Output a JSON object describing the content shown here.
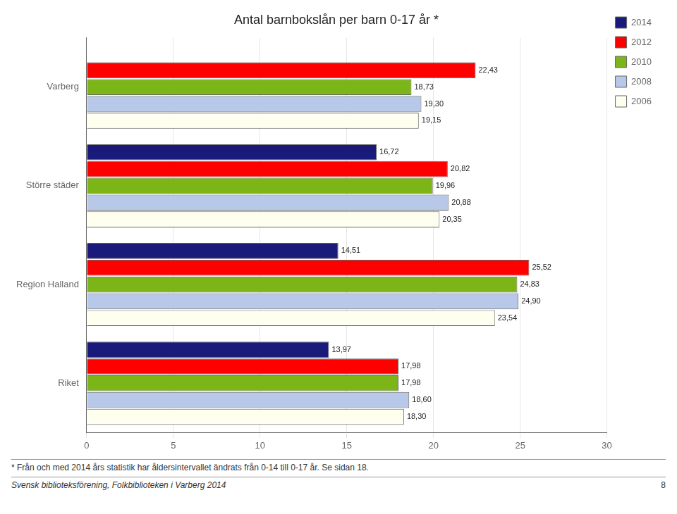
{
  "chart_data": {
    "type": "bar",
    "orientation": "horizontal",
    "title": "Antal barnbokslån per barn 0-17 år *",
    "categories": [
      "Varberg",
      "Större städer",
      "Region Halland",
      "Riket"
    ],
    "series": [
      {
        "name": "2014",
        "color": "#1a1a7a",
        "values": [
          null,
          16.72,
          14.51,
          13.97
        ],
        "value_labels": [
          null,
          "16,72",
          "14,51",
          "13,97"
        ]
      },
      {
        "name": "2012",
        "color": "#FF0000",
        "values": [
          22.43,
          20.82,
          25.52,
          17.98
        ],
        "value_labels": [
          "22,43",
          "20,82",
          "25,52",
          "17,98"
        ]
      },
      {
        "name": "2010",
        "color": "#7CB518",
        "values": [
          18.73,
          19.96,
          24.83,
          17.98
        ],
        "value_labels": [
          "18,73",
          "19,96",
          "24,83",
          "17,98"
        ]
      },
      {
        "name": "2008",
        "color": "#B8C8E8",
        "values": [
          19.3,
          20.88,
          24.9,
          18.6
        ],
        "value_labels": [
          "19,30",
          "20,88",
          "24,90",
          "18,60"
        ]
      },
      {
        "name": "2006",
        "color": "#FFFFF0",
        "values": [
          19.15,
          20.35,
          23.54,
          18.3
        ],
        "value_labels": [
          "19,15",
          "20,35",
          "23,54",
          "18,30"
        ]
      }
    ],
    "xlim": [
      0,
      30
    ],
    "xticks": [
      0,
      5,
      10,
      15,
      20,
      25,
      30
    ],
    "grid": true,
    "legend": "right",
    "data_labels": true,
    "annotations": [
      "* Från och med 2014 års statistik har åldersintervallet ändrats från 0-14 till 0-17 år. Se sidan 18.",
      "Svensk biblioteksförening, Folkbiblioteken i Varberg 2014",
      "8"
    ]
  }
}
